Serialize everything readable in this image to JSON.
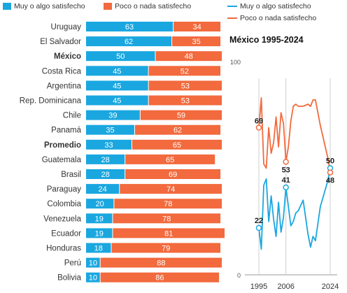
{
  "legend": {
    "bar_a": "Muy o algo satisfecho",
    "bar_b": "Poco o nada satisfecho",
    "line_a": "Muy o algo satisfecho",
    "line_b": "Poco o nada satisfecho"
  },
  "colors": {
    "a": "#1aa7e0",
    "b": "#f26a3d",
    "grid": "#cfcfcf",
    "text": "#222222"
  },
  "chart_data": [
    {
      "type": "bar",
      "stacked": true,
      "orientation": "horizontal",
      "categories": [
        "Uruguay",
        "El Salvador",
        "México",
        "Costa Rica",
        "Argentina",
        "Rep. Dominicana",
        "Chile",
        "Panamá",
        "Promedio",
        "Guatemala",
        "Brasil",
        "Paraguay",
        "Colombia",
        "Venezuela",
        "Ecuador",
        "Honduras",
        "Perú",
        "Bolivia"
      ],
      "bold_categories": [
        "México",
        "Promedio"
      ],
      "series": [
        {
          "name": "Muy o algo satisfecho",
          "values": [
            63,
            62,
            50,
            45,
            45,
            45,
            39,
            35,
            33,
            28,
            28,
            24,
            20,
            19,
            19,
            18,
            10,
            10
          ]
        },
        {
          "name": "Poco o nada satisfecho",
          "values": [
            34,
            35,
            48,
            52,
            53,
            53,
            59,
            62,
            65,
            65,
            69,
            74,
            78,
            78,
            81,
            79,
            88,
            86
          ]
        }
      ]
    },
    {
      "type": "line",
      "title": "México 1995-2024",
      "ylim": [
        0,
        100
      ],
      "yticks": [
        0,
        100
      ],
      "xticks": [
        "1995",
        "2006",
        "2024"
      ],
      "series": [
        {
          "name": "Muy o algo satisfecho",
          "x": [
            1995,
            1996,
            1997,
            1998,
            1999,
            2000,
            2001,
            2002,
            2003,
            2004,
            2005,
            2006,
            2007,
            2008,
            2009,
            2010,
            2011,
            2013,
            2015,
            2016,
            2017,
            2018,
            2020,
            2023,
            2024
          ],
          "values": [
            22,
            12,
            42,
            45,
            25,
            37,
            26,
            18,
            34,
            20,
            27,
            41,
            32,
            23,
            25,
            29,
            30,
            35,
            19,
            13,
            18,
            16,
            32,
            44,
            50
          ]
        },
        {
          "name": "Poco o nada satisfecho",
          "x": [
            1995,
            1996,
            1997,
            1998,
            1999,
            2000,
            2001,
            2002,
            2003,
            2004,
            2005,
            2006,
            2007,
            2008,
            2009,
            2010,
            2011,
            2013,
            2015,
            2016,
            2017,
            2018,
            2020,
            2023,
            2024
          ],
          "values": [
            69,
            83,
            52,
            50,
            69,
            57,
            62,
            74,
            60,
            76,
            71,
            53,
            60,
            72,
            79,
            80,
            79,
            79,
            80,
            79,
            82,
            82,
            70,
            55,
            48
          ]
        }
      ],
      "labels": [
        {
          "series": 1,
          "year": 1995,
          "text": "69"
        },
        {
          "series": 0,
          "year": 1995,
          "text": "22"
        },
        {
          "series": 1,
          "year": 2006,
          "text": "53"
        },
        {
          "series": 0,
          "year": 2006,
          "text": "41"
        },
        {
          "series": 0,
          "year": 2024,
          "text": "50"
        },
        {
          "series": 1,
          "year": 2024,
          "text": "48"
        }
      ]
    }
  ]
}
